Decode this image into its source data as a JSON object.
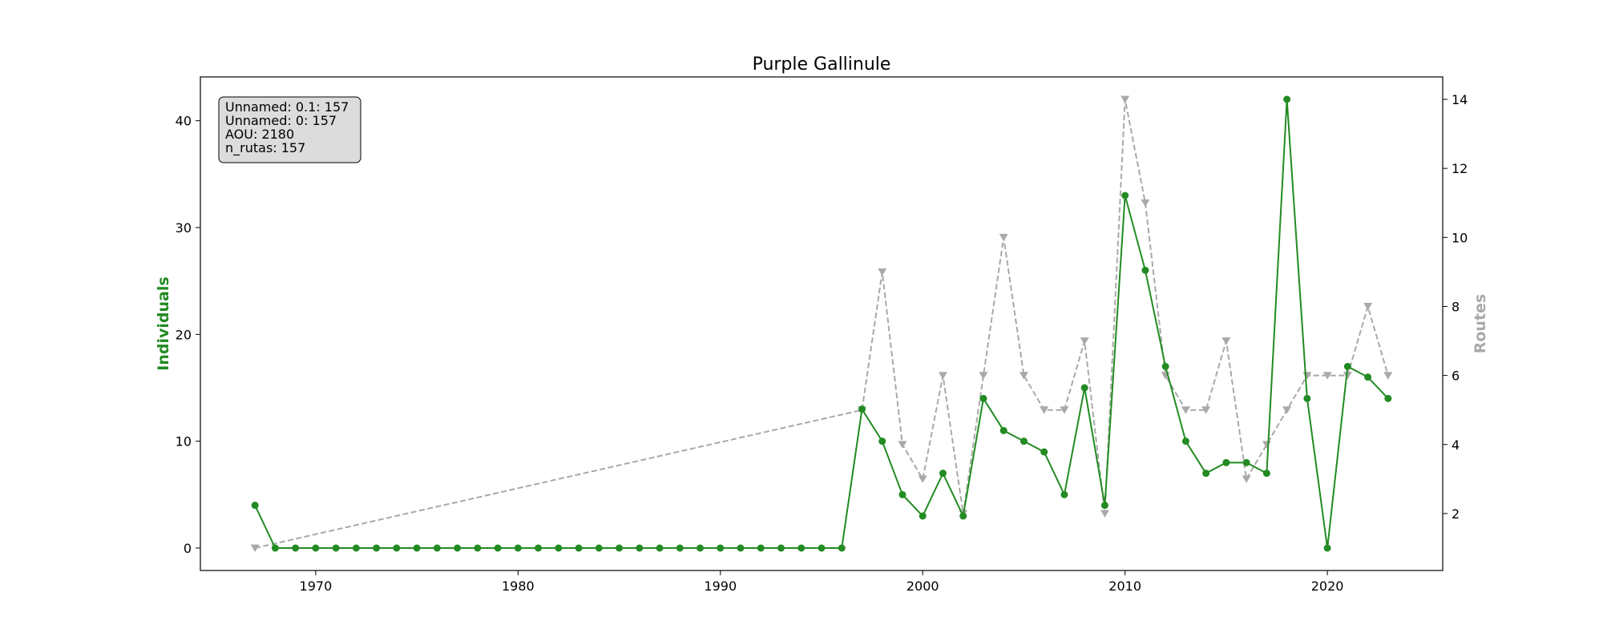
{
  "chart_data": {
    "type": "line",
    "title": "Purple Gallinule",
    "xlabel": "",
    "xlim": [
      1964.3,
      2025.7
    ],
    "x_ticks": [
      1970,
      1980,
      1990,
      2000,
      2010,
      2020
    ],
    "y_left": {
      "label": "Individuals",
      "lim": [
        -2.1,
        44.1
      ],
      "ticks": [
        0,
        10,
        20,
        30,
        40
      ],
      "color": "#228B22"
    },
    "y_right": {
      "label": "Routes",
      "lim": [
        0.35,
        14.65
      ],
      "ticks": [
        2,
        4,
        6,
        8,
        10,
        12,
        14
      ],
      "color": "#A9A9A9"
    },
    "series": [
      {
        "name": "Individuals",
        "axis": "left",
        "color": "#228B22",
        "marker": "circle",
        "linestyle": "solid",
        "x": [
          1967,
          1968,
          1969,
          1970,
          1971,
          1972,
          1973,
          1974,
          1975,
          1976,
          1977,
          1978,
          1979,
          1980,
          1981,
          1982,
          1983,
          1984,
          1985,
          1986,
          1987,
          1988,
          1989,
          1990,
          1991,
          1992,
          1993,
          1994,
          1995,
          1996,
          1997,
          1998,
          1999,
          2000,
          2001,
          2002,
          2003,
          2004,
          2005,
          2006,
          2007,
          2008,
          2009,
          2010,
          2011,
          2012,
          2013,
          2014,
          2015,
          2016,
          2017,
          2018,
          2019,
          2020,
          2021,
          2022,
          2023
        ],
        "values": [
          4,
          0,
          0,
          0,
          0,
          0,
          0,
          0,
          0,
          0,
          0,
          0,
          0,
          0,
          0,
          0,
          0,
          0,
          0,
          0,
          0,
          0,
          0,
          0,
          0,
          0,
          0,
          0,
          0,
          0,
          13,
          10,
          5,
          3,
          7,
          3,
          14,
          11,
          10,
          9,
          5,
          15,
          4,
          33,
          26,
          17,
          10,
          7,
          8,
          8,
          7,
          42,
          14,
          0,
          17,
          16,
          14
        ]
      },
      {
        "name": "Routes",
        "axis": "right",
        "color": "#A9A9A9",
        "marker": "triangle-down",
        "linestyle": "dashed",
        "x": [
          1967,
          1997,
          1998,
          1999,
          2000,
          2001,
          2002,
          2003,
          2004,
          2005,
          2006,
          2007,
          2008,
          2009,
          2010,
          2011,
          2012,
          2013,
          2014,
          2015,
          2016,
          2017,
          2018,
          2019,
          2020,
          2021,
          2022,
          2023
        ],
        "values": [
          1,
          5,
          9,
          4,
          3,
          6,
          2,
          6,
          10,
          6,
          5,
          5,
          7,
          2,
          14,
          11,
          6,
          5,
          5,
          7,
          3,
          4,
          5,
          6,
          6,
          6,
          8,
          6
        ]
      }
    ],
    "annotation": {
      "lines": [
        "Unnamed: 0.1: 157",
        "Unnamed: 0: 157",
        "AOU: 2180",
        "n_rutas: 157"
      ],
      "placement": "top-left"
    },
    "grid": false,
    "legend": "none"
  }
}
